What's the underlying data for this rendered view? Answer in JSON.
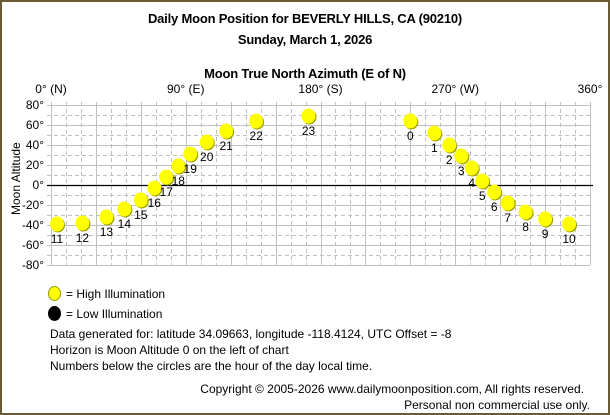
{
  "header": {
    "title": "Daily Moon Position for BEVERLY HILLS, CA (90210)",
    "date": "Sunday, March 1, 2026",
    "x_axis_title": "Moon True North Azimuth (E of N)"
  },
  "axes": {
    "x_ticks": [
      {
        "value": 0,
        "label": "0° (N)"
      },
      {
        "value": 90,
        "label": "90° (E)"
      },
      {
        "value": 180,
        "label": "180° (S)"
      },
      {
        "value": 270,
        "label": "270° (W)"
      },
      {
        "value": 360,
        "label": "360°"
      }
    ],
    "y_ticks": [
      {
        "value": 80,
        "label": "80°"
      },
      {
        "value": 60,
        "label": "60°"
      },
      {
        "value": 40,
        "label": "40°"
      },
      {
        "value": 20,
        "label": "20°"
      },
      {
        "value": 0,
        "label": "0°"
      },
      {
        "value": -20,
        "label": "-20°"
      },
      {
        "value": -40,
        "label": "-40°"
      },
      {
        "value": -60,
        "label": "-60°"
      },
      {
        "value": -80,
        "label": "-80°"
      }
    ],
    "y_label": "Moon Altitude"
  },
  "legend": {
    "high": "= High Illumination",
    "low": "= Low Illumination"
  },
  "info": {
    "line1": "Data generated for: latitude 34.09663, longitude -118.4124, UTC Offset = -8",
    "line2": "Horizon is Moon Altitude 0 on the left of chart",
    "line3": "Numbers below the circles are the hour of the day local time."
  },
  "footer": {
    "copyright": "Copyright © 2005-2026 www.dailymoonposition.com, All rights reserved.",
    "usage": "Personal non commercial use only."
  },
  "colors": {
    "frame": "#6b5a34",
    "high_illumination": "#ffff00",
    "low_illumination": "#000000",
    "grid": "#c0c0c0",
    "horizon": "#000000"
  },
  "chart_data": {
    "type": "scatter",
    "title": "Daily Moon Position for BEVERLY HILLS, CA (90210)",
    "subtitle": "Sunday, March 1, 2026",
    "xlabel": "Moon True North Azimuth (E of N)",
    "ylabel": "Moon Altitude",
    "xlim": [
      0,
      360
    ],
    "ylim": [
      -80,
      80
    ],
    "grid": true,
    "legend": [
      "High Illumination",
      "Low Illumination"
    ],
    "legend_position": "bottom-left",
    "series": [
      {
        "name": "High Illumination",
        "points": [
          {
            "hour": 0,
            "azimuth": 240,
            "altitude": 64
          },
          {
            "hour": 1,
            "azimuth": 256,
            "altitude": 52
          },
          {
            "hour": 2,
            "azimuth": 266,
            "altitude": 40
          },
          {
            "hour": 3,
            "azimuth": 274,
            "altitude": 29
          },
          {
            "hour": 4,
            "azimuth": 281,
            "altitude": 17
          },
          {
            "hour": 5,
            "azimuth": 288,
            "altitude": 4
          },
          {
            "hour": 6,
            "azimuth": 296,
            "altitude": -7
          },
          {
            "hour": 7,
            "azimuth": 305,
            "altitude": -18
          },
          {
            "hour": 8,
            "azimuth": 317,
            "altitude": -27
          },
          {
            "hour": 9,
            "azimuth": 330,
            "altitude": -34
          },
          {
            "hour": 10,
            "azimuth": 346,
            "altitude": -39
          },
          {
            "hour": 11,
            "azimuth": 4,
            "altitude": -39
          },
          {
            "hour": 12,
            "azimuth": 21,
            "altitude": -38
          },
          {
            "hour": 13,
            "azimuth": 37,
            "altitude": -32
          },
          {
            "hour": 14,
            "azimuth": 49,
            "altitude": -24
          },
          {
            "hour": 15,
            "azimuth": 60,
            "altitude": -15
          },
          {
            "hour": 16,
            "azimuth": 69,
            "altitude": -3
          },
          {
            "hour": 17,
            "azimuth": 77,
            "altitude": 8
          },
          {
            "hour": 18,
            "azimuth": 85,
            "altitude": 19
          },
          {
            "hour": 19,
            "azimuth": 93,
            "altitude": 31
          },
          {
            "hour": 20,
            "azimuth": 104,
            "altitude": 43
          },
          {
            "hour": 21,
            "azimuth": 117,
            "altitude": 54
          },
          {
            "hour": 22,
            "azimuth": 137,
            "altitude": 64
          },
          {
            "hour": 23,
            "azimuth": 172,
            "altitude": 69
          }
        ]
      },
      {
        "name": "Low Illumination",
        "points": []
      }
    ]
  }
}
